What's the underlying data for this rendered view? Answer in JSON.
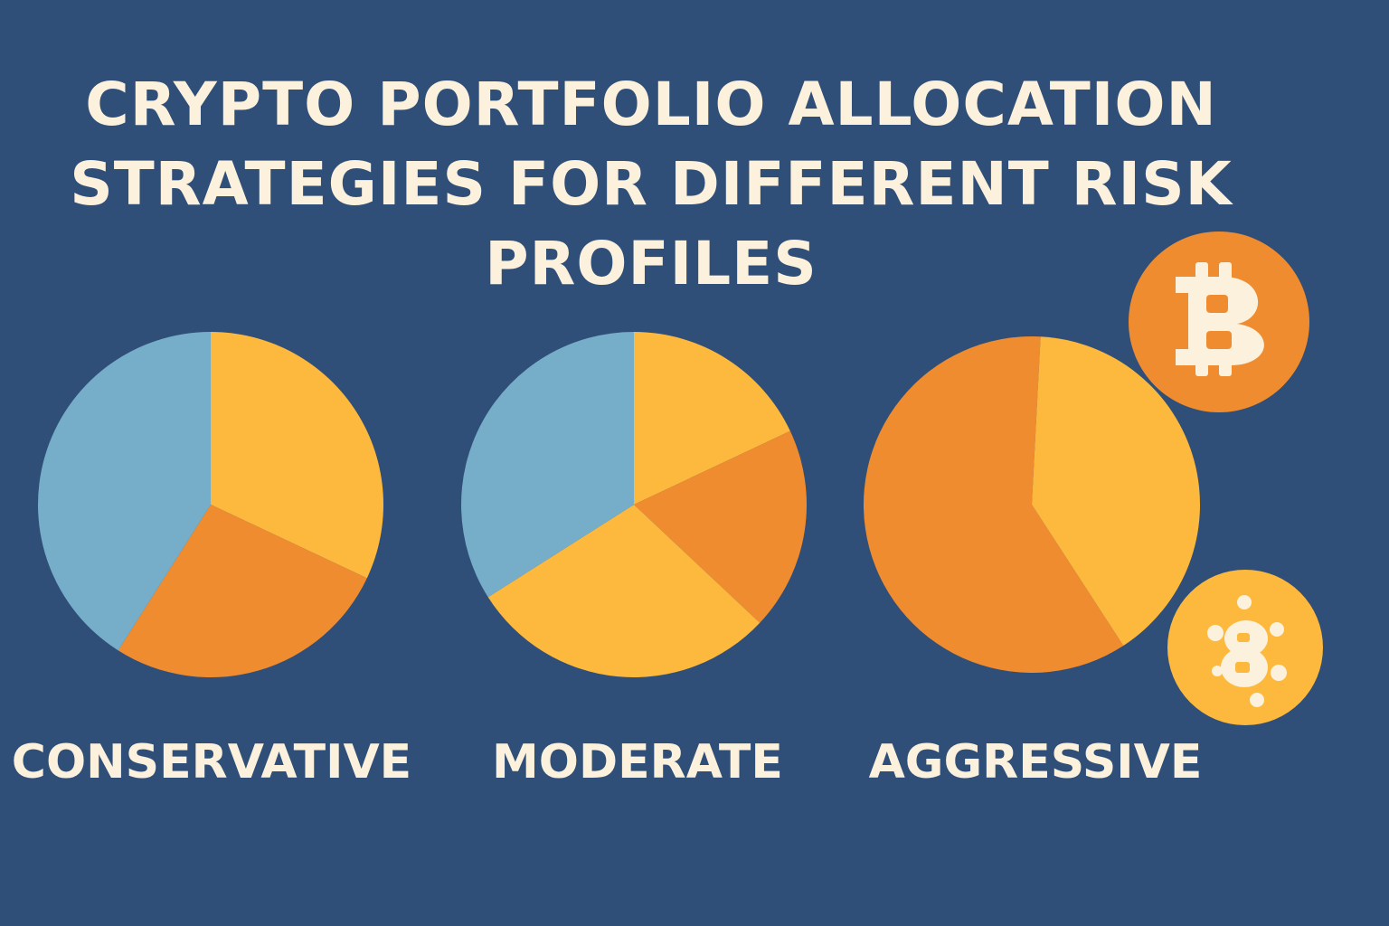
{
  "title_lines": [
    "CRYPTO PORTFOLIO ALLOCATION",
    "STRATEGIES FOR DIFFERENT RISK",
    "PROFILES"
  ],
  "colors": {
    "background": "#2f4e78",
    "text": "#fbf1dc",
    "blue": "#76aec9",
    "yellow": "#fdb93d",
    "orange": "#f08c30"
  },
  "icons": [
    "bitcoin-coin-icon",
    "crypto-coin-icon"
  ],
  "chart_data": [
    {
      "type": "pie",
      "title": "CONSERVATIVE",
      "slices": [
        {
          "value": 32,
          "color": "#fdb93d"
        },
        {
          "value": 27,
          "color": "#f08c30"
        },
        {
          "value": 41,
          "color": "#76aec9"
        }
      ]
    },
    {
      "type": "pie",
      "title": "MODERATE",
      "slices": [
        {
          "value": 18,
          "color": "#fdb93d"
        },
        {
          "value": 19,
          "color": "#f08c30"
        },
        {
          "value": 29,
          "color": "#fdb93d"
        },
        {
          "value": 34,
          "color": "#76aec9"
        }
      ]
    },
    {
      "type": "pie",
      "title": "AGGRESSIVE",
      "slices": [
        {
          "value": 60,
          "color": "#f08c30"
        },
        {
          "value": 40,
          "color": "#fdb93d"
        }
      ]
    }
  ]
}
